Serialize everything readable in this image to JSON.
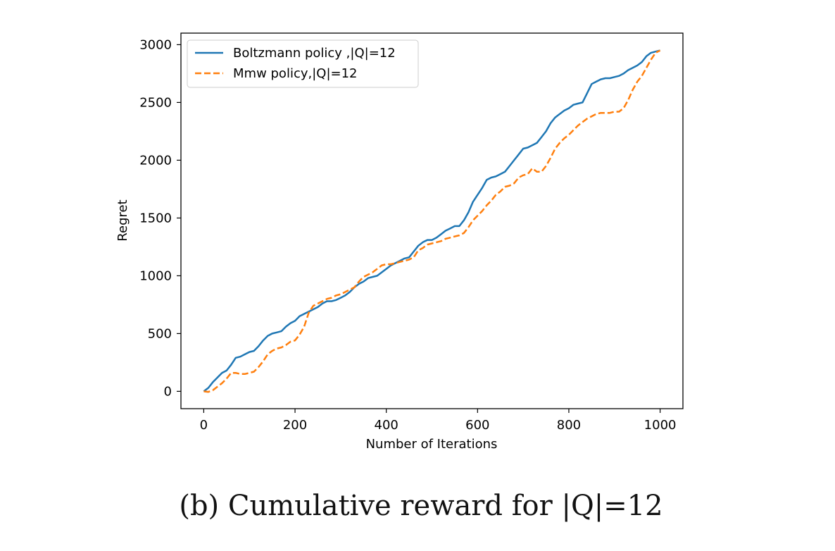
{
  "chart_data": {
    "type": "line",
    "xlabel": "Number of Iterations",
    "ylabel": "Regret",
    "xlim": [
      -50,
      1050
    ],
    "ylim": [
      -150,
      3100
    ],
    "xticks": [
      0,
      200,
      400,
      600,
      800,
      1000
    ],
    "yticks": [
      0,
      500,
      1000,
      1500,
      2000,
      2500,
      3000
    ],
    "legend_position": "top-left",
    "series": [
      {
        "name": "Boltzmann policy ,|Q|=12",
        "color": "#1f77b4",
        "style": "solid",
        "x": [
          0,
          10,
          20,
          30,
          40,
          50,
          60,
          70,
          80,
          90,
          100,
          110,
          120,
          130,
          140,
          150,
          160,
          170,
          180,
          190,
          200,
          210,
          220,
          230,
          240,
          250,
          260,
          270,
          280,
          290,
          300,
          310,
          320,
          330,
          340,
          350,
          360,
          370,
          380,
          390,
          400,
          410,
          420,
          430,
          440,
          450,
          460,
          470,
          480,
          490,
          500,
          510,
          520,
          530,
          540,
          550,
          560,
          570,
          580,
          590,
          600,
          610,
          620,
          630,
          640,
          650,
          660,
          670,
          680,
          690,
          700,
          710,
          720,
          730,
          740,
          750,
          760,
          770,
          780,
          790,
          800,
          810,
          820,
          830,
          840,
          850,
          860,
          870,
          880,
          890,
          900,
          910,
          920,
          930,
          940,
          950,
          960,
          970,
          980,
          990,
          1000
        ],
        "values": [
          0,
          30,
          80,
          120,
          160,
          180,
          230,
          290,
          300,
          320,
          340,
          350,
          390,
          440,
          480,
          500,
          510,
          520,
          560,
          590,
          610,
          650,
          670,
          690,
          710,
          730,
          760,
          780,
          780,
          790,
          810,
          830,
          860,
          900,
          930,
          950,
          980,
          990,
          1000,
          1030,
          1060,
          1090,
          1110,
          1130,
          1150,
          1160,
          1210,
          1260,
          1290,
          1310,
          1310,
          1330,
          1360,
          1390,
          1410,
          1430,
          1430,
          1480,
          1550,
          1640,
          1700,
          1760,
          1830,
          1850,
          1860,
          1880,
          1900,
          1950,
          2000,
          2050,
          2100,
          2110,
          2130,
          2150,
          2200,
          2250,
          2320,
          2370,
          2400,
          2430,
          2450,
          2480,
          2490,
          2500,
          2580,
          2660,
          2680,
          2700,
          2710,
          2710,
          2720,
          2730,
          2750,
          2780,
          2800,
          2820,
          2850,
          2900,
          2930,
          2940,
          2950
        ]
      },
      {
        "name": "Mmw policy,|Q|=12",
        "color": "#ff7f0e",
        "style": "dashed",
        "x": [
          0,
          10,
          20,
          30,
          40,
          50,
          60,
          70,
          80,
          90,
          100,
          110,
          120,
          130,
          140,
          150,
          160,
          170,
          180,
          190,
          200,
          210,
          220,
          230,
          240,
          250,
          260,
          270,
          280,
          290,
          300,
          310,
          320,
          330,
          340,
          350,
          360,
          370,
          380,
          390,
          400,
          410,
          420,
          430,
          440,
          450,
          460,
          470,
          480,
          490,
          500,
          510,
          520,
          530,
          540,
          550,
          560,
          570,
          580,
          590,
          600,
          610,
          620,
          630,
          640,
          650,
          660,
          670,
          680,
          690,
          700,
          710,
          720,
          730,
          740,
          750,
          760,
          770,
          780,
          790,
          800,
          810,
          820,
          830,
          840,
          850,
          860,
          870,
          880,
          890,
          900,
          910,
          920,
          930,
          940,
          950,
          960,
          970,
          980,
          990,
          1000
        ],
        "values": [
          0,
          -5,
          10,
          40,
          70,
          110,
          160,
          160,
          150,
          150,
          160,
          170,
          210,
          260,
          320,
          350,
          370,
          380,
          400,
          430,
          440,
          490,
          560,
          680,
          740,
          760,
          780,
          800,
          810,
          830,
          840,
          860,
          880,
          900,
          950,
          990,
          1010,
          1030,
          1060,
          1090,
          1100,
          1100,
          1110,
          1120,
          1130,
          1140,
          1160,
          1220,
          1240,
          1270,
          1280,
          1290,
          1300,
          1320,
          1330,
          1340,
          1350,
          1370,
          1420,
          1480,
          1520,
          1560,
          1610,
          1650,
          1700,
          1730,
          1770,
          1780,
          1800,
          1850,
          1870,
          1880,
          1930,
          1900,
          1900,
          1950,
          2020,
          2100,
          2150,
          2190,
          2220,
          2260,
          2300,
          2330,
          2360,
          2380,
          2400,
          2410,
          2410,
          2410,
          2420,
          2420,
          2450,
          2520,
          2610,
          2680,
          2730,
          2800,
          2870,
          2930,
          2950
        ]
      }
    ]
  },
  "caption": "(b) Cumulative reward for |Q|=12"
}
